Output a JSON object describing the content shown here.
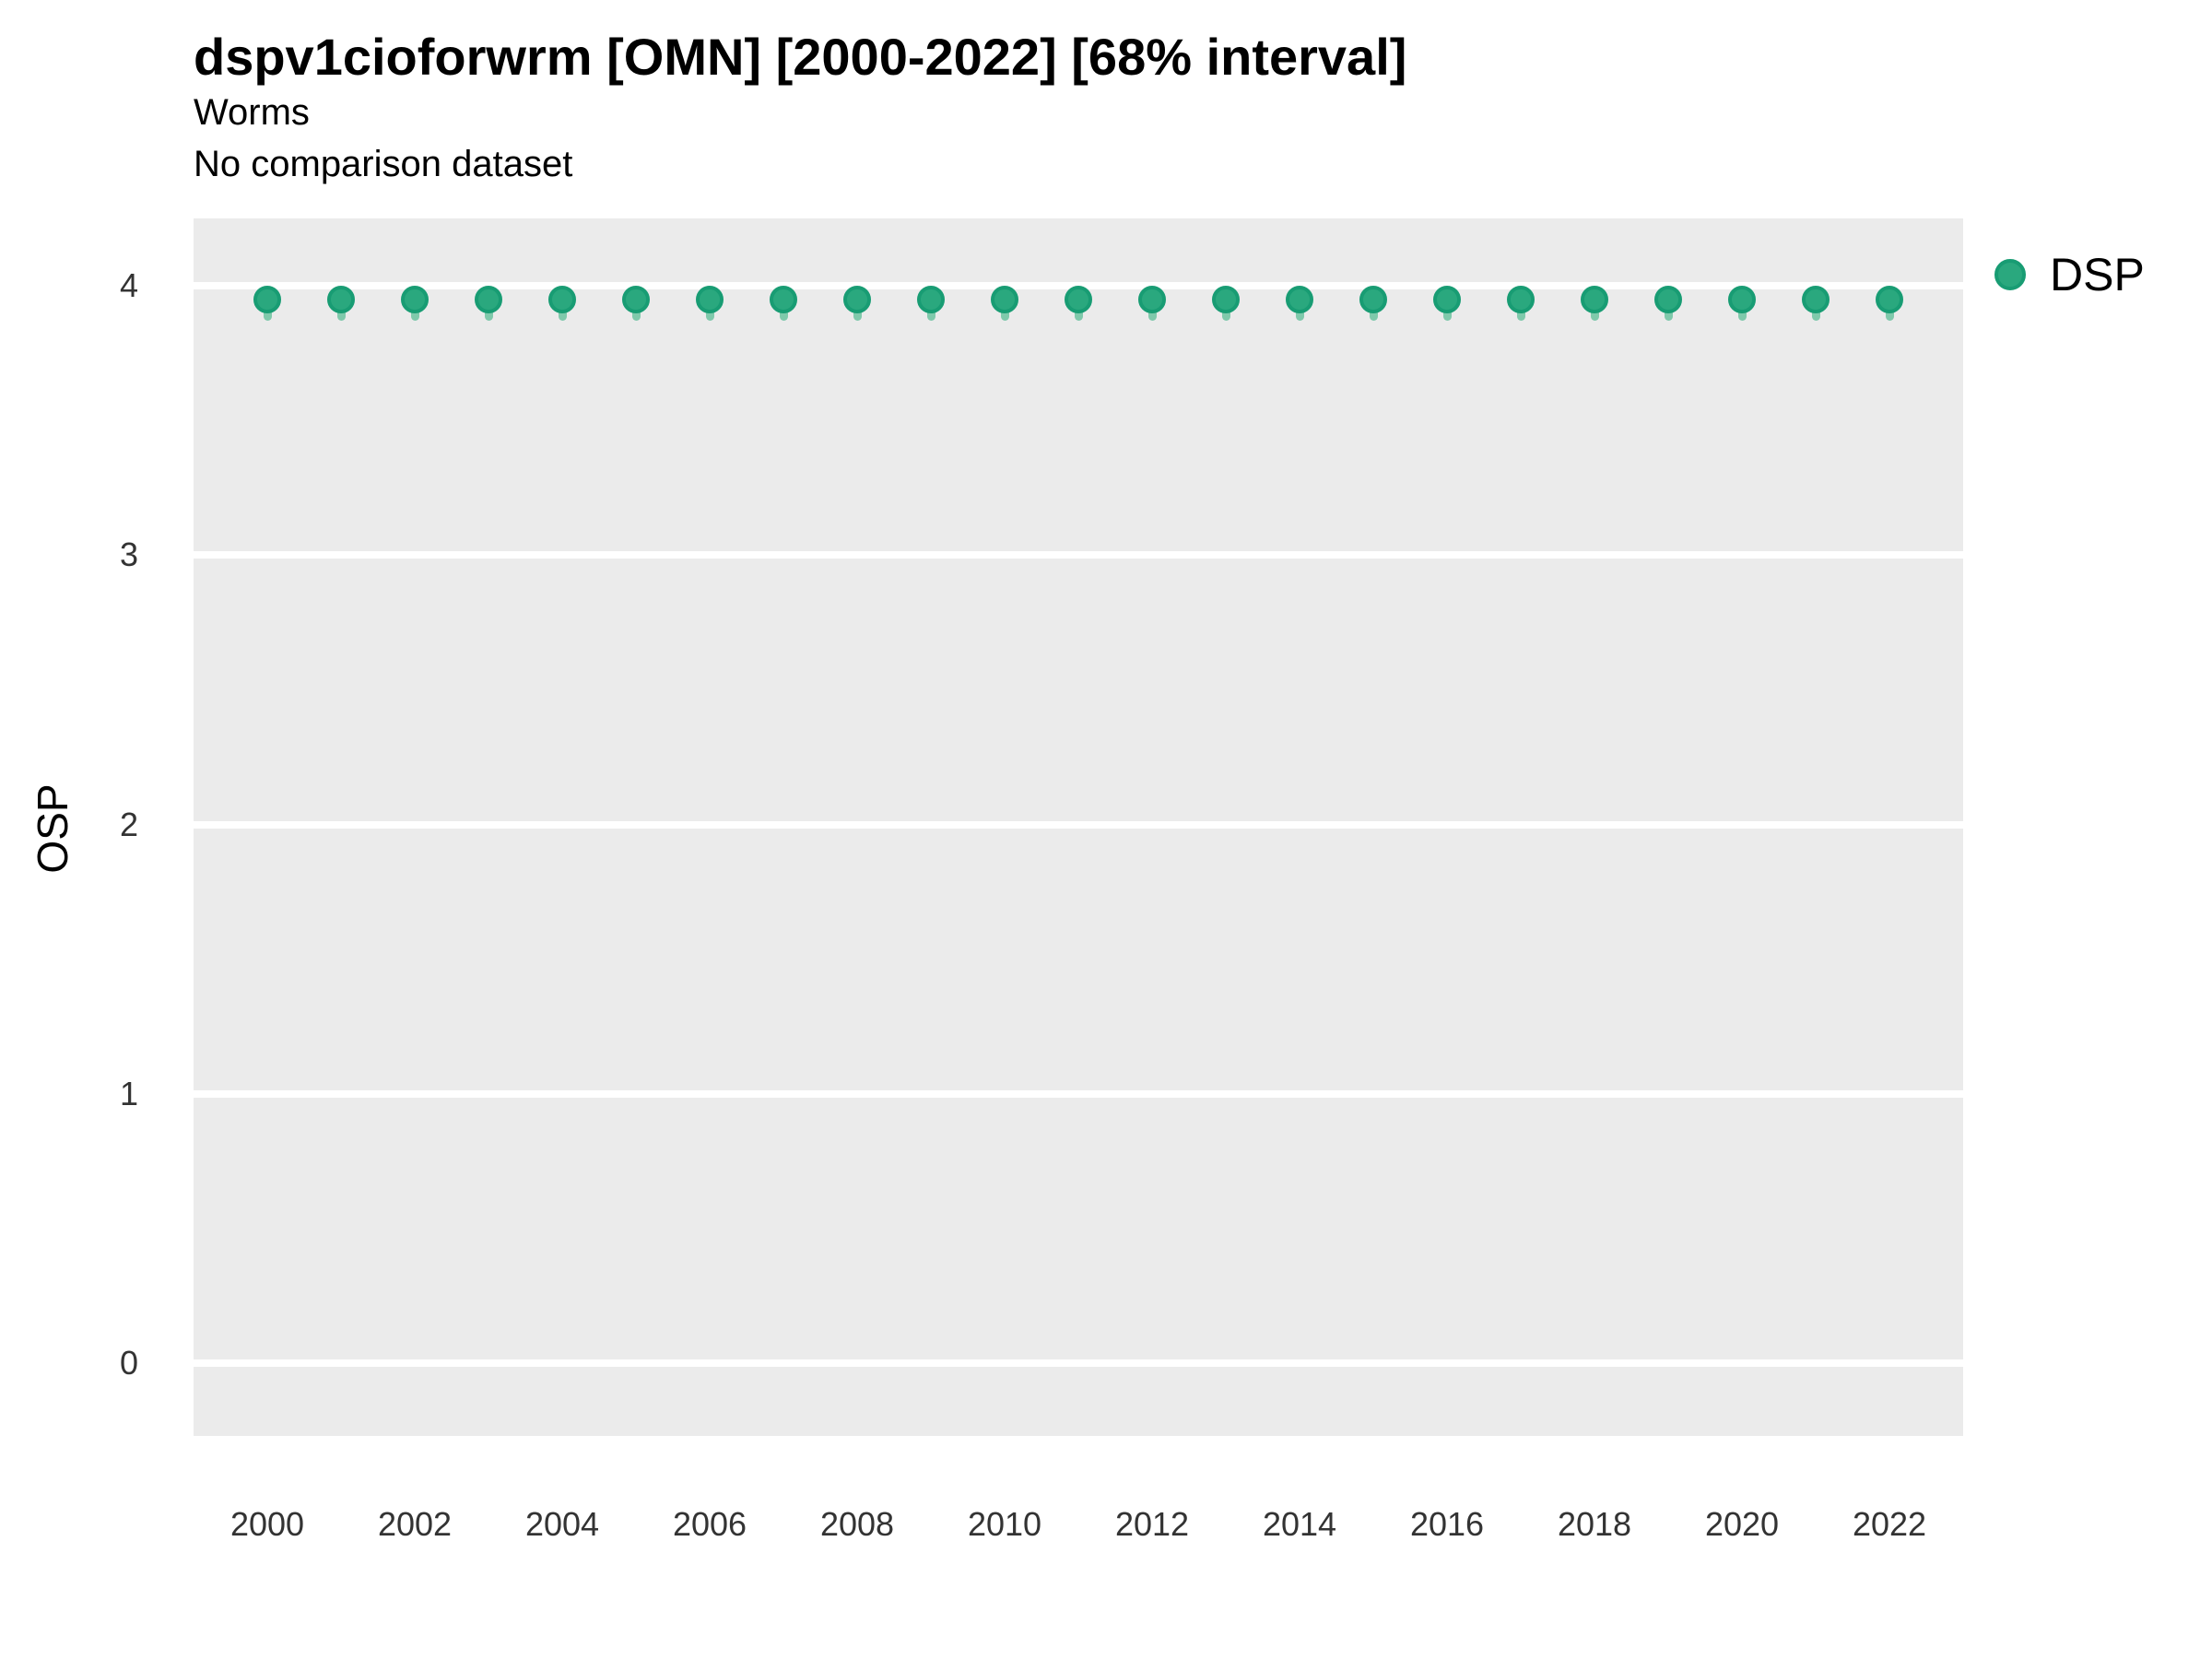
{
  "header": {
    "title": "dspv1cioforwrm [OMN] [2000-2022] [68% interval]",
    "subtitle": "Worms",
    "comparison_note": "No comparison dataset"
  },
  "legend": {
    "items": [
      {
        "label": "DSP",
        "color": "#2aa87e",
        "stroke": "#189c73"
      }
    ],
    "position": "right-top"
  },
  "colors": {
    "point_fill": "#2aa87e",
    "point_stroke": "#189c73",
    "interval": "#7fc9ab",
    "panel_bg": "#ebebeb",
    "gridline": "#ffffff",
    "tick_text": "#333333",
    "text": "#000000"
  },
  "chart_data": {
    "type": "scatter",
    "title": "dspv1cioforwrm [OMN] [2000-2022] [68% interval]",
    "subtitle": "Worms",
    "note": "No comparison dataset",
    "xlabel": "",
    "ylabel": "OSP",
    "x": [
      2000,
      2001,
      2002,
      2003,
      2004,
      2005,
      2006,
      2007,
      2008,
      2009,
      2010,
      2011,
      2012,
      2013,
      2014,
      2015,
      2016,
      2017,
      2018,
      2019,
      2020,
      2021,
      2022
    ],
    "series": [
      {
        "name": "DSP",
        "values": [
          3.95,
          3.95,
          3.95,
          3.95,
          3.95,
          3.95,
          3.95,
          3.95,
          3.95,
          3.95,
          3.95,
          3.95,
          3.95,
          3.95,
          3.95,
          3.95,
          3.95,
          3.95,
          3.95,
          3.95,
          3.95,
          3.95,
          3.95
        ],
        "interval_low": [
          3.87,
          3.87,
          3.87,
          3.87,
          3.87,
          3.87,
          3.87,
          3.87,
          3.87,
          3.87,
          3.87,
          3.87,
          3.87,
          3.87,
          3.87,
          3.87,
          3.87,
          3.87,
          3.87,
          3.87,
          3.87,
          3.87,
          3.87
        ],
        "interval_high": [
          3.99,
          3.99,
          3.99,
          3.99,
          3.99,
          3.99,
          3.99,
          3.99,
          3.99,
          3.99,
          3.99,
          3.99,
          3.99,
          3.99,
          3.99,
          3.99,
          3.99,
          3.99,
          3.99,
          3.99,
          3.99,
          3.99,
          3.99
        ]
      }
    ],
    "xticks": [
      2000,
      2002,
      2004,
      2006,
      2008,
      2010,
      2012,
      2014,
      2016,
      2018,
      2020,
      2022
    ],
    "yticks": [
      0,
      1,
      2,
      3,
      4
    ],
    "xlim": [
      1999,
      2023
    ],
    "ylim": [
      -0.27,
      4.25
    ],
    "grid": "horizontal-major-white",
    "legend_position": "right-top",
    "interval_label": "68% interval"
  }
}
